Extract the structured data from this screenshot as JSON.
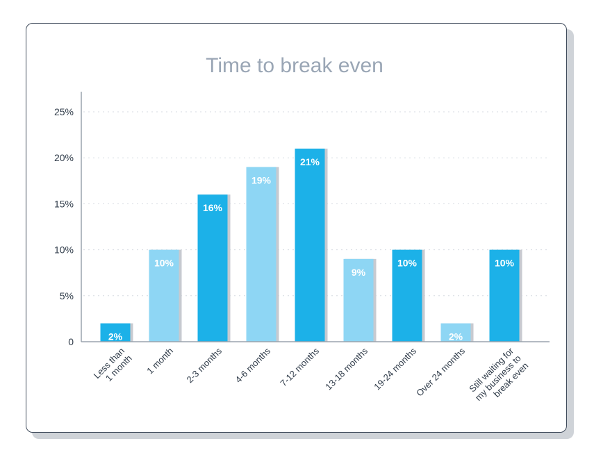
{
  "chart_data": {
    "type": "bar",
    "title": "Time to break even",
    "xlabel": "",
    "ylabel": "",
    "ylim": [
      0,
      25
    ],
    "yticks": [
      0,
      5,
      10,
      15,
      20,
      25
    ],
    "ytick_labels": [
      "0",
      "5%",
      "10%",
      "15%",
      "20%",
      "25%"
    ],
    "grid": true,
    "categories": [
      [
        "Less than",
        "1 month"
      ],
      [
        "1 month"
      ],
      [
        "2-3 months"
      ],
      [
        "4-6 months"
      ],
      [
        "7-12 months"
      ],
      [
        "13-18 months"
      ],
      [
        "19-24 months"
      ],
      [
        "Over 24 months"
      ],
      [
        "Still waiting for",
        "my business to",
        "break even"
      ]
    ],
    "values": [
      2,
      10,
      16,
      19,
      21,
      9,
      10,
      2,
      10
    ],
    "data_labels": [
      "2%",
      "10%",
      "16%",
      "19%",
      "21%",
      "9%",
      "10%",
      "2%",
      "10%"
    ],
    "colors": [
      "#1cb1e8",
      "#8ed6f4",
      "#1cb1e8",
      "#8ed6f4",
      "#1cb1e8",
      "#8ed6f4",
      "#1cb1e8",
      "#8ed6f4",
      "#1cb1e8"
    ],
    "bar_shadow_color": "#c7cad0"
  }
}
